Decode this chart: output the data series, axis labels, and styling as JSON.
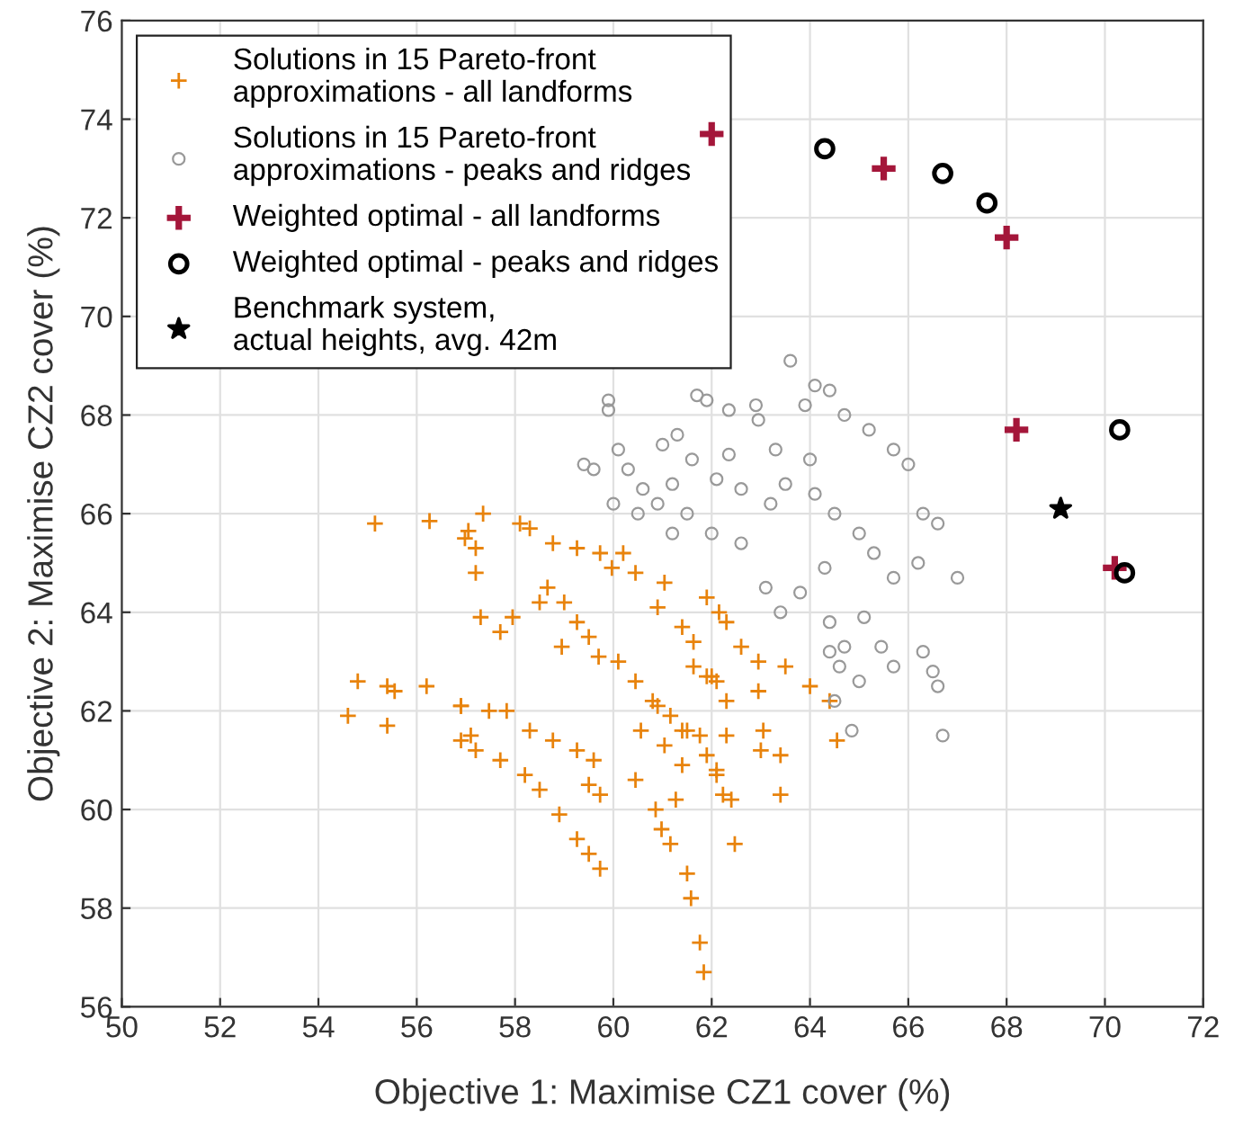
{
  "chart_data": {
    "type": "scatter",
    "xlabel": "Objective 1: Maximise CZ1 cover (%)",
    "ylabel": "Objective 2: Maximise CZ2 cover (%)",
    "xlim": [
      50,
      72
    ],
    "xticks": [
      50,
      52,
      54,
      56,
      58,
      60,
      62,
      64,
      66,
      68,
      70,
      72
    ],
    "ylim": [
      56,
      76
    ],
    "yticks": [
      56,
      58,
      60,
      62,
      64,
      66,
      68,
      70,
      72,
      74,
      76
    ],
    "grid": true,
    "legend": "top left",
    "series": [
      {
        "name": "Solutions in 15 Pareto-front\napproximations - all landforms",
        "color": "#e8830c",
        "marker": "cross",
        "x": [
          54.6,
          54.8,
          55.15,
          55.4,
          55.55,
          56.26,
          56.9,
          57.35,
          57.05,
          57.2,
          58.1,
          58.3,
          58.77,
          59.26,
          59.73,
          60.2,
          59.97,
          60.45,
          61.04,
          61.9,
          62.15,
          62.3,
          62.6,
          62.95,
          63.5,
          64.0,
          64.4,
          64.55,
          58.66,
          59.0,
          59.26,
          59.5,
          59.7,
          60.1,
          60.45,
          60.8,
          61.16,
          61.5,
          61.9,
          62.1,
          62.4,
          62.47,
          57.83,
          58.3,
          58.77,
          59.26,
          59.6,
          56.9,
          57.47,
          56.9,
          57.2,
          57.7,
          58.2,
          58.5,
          58.9,
          59.26,
          59.5,
          59.73,
          59.5,
          59.73,
          60.45,
          60.86,
          60.98,
          61.16,
          61.5,
          61.58,
          61.76,
          61.84,
          60.56,
          61.04,
          61.4,
          61.27,
          62.1,
          62.23,
          63.4,
          63.0,
          62.3,
          61.76,
          60.9,
          61.4,
          61.63,
          62.0,
          57.7,
          57.95,
          57.3,
          58.95,
          58.5,
          57.2,
          56.98,
          60.9,
          61.4,
          62.3,
          61.63,
          61.9,
          62.1,
          62.95,
          63.05,
          63.4,
          55.4,
          56.2,
          57.1
        ],
        "values": [
          61.9,
          62.6,
          65.8,
          62.5,
          62.4,
          65.85,
          62.1,
          66.0,
          65.65,
          65.3,
          65.8,
          65.7,
          65.4,
          65.3,
          65.2,
          65.2,
          64.9,
          64.8,
          64.6,
          64.3,
          64.0,
          63.8,
          63.3,
          63.0,
          62.9,
          62.5,
          62.2,
          61.4,
          64.5,
          64.2,
          63.8,
          63.5,
          63.1,
          63.0,
          62.6,
          62.2,
          61.9,
          61.6,
          61.1,
          60.8,
          60.2,
          59.3,
          62.0,
          61.6,
          61.4,
          61.2,
          61.0,
          62.1,
          62.0,
          61.4,
          61.2,
          61.0,
          60.7,
          60.4,
          59.9,
          59.4,
          59.1,
          58.8,
          60.5,
          60.3,
          60.6,
          60.0,
          59.6,
          59.3,
          58.7,
          58.2,
          57.3,
          56.7,
          61.6,
          61.3,
          60.9,
          60.2,
          60.7,
          60.3,
          60.3,
          61.2,
          61.5,
          61.5,
          64.1,
          63.7,
          63.4,
          62.7,
          63.6,
          63.9,
          63.9,
          63.3,
          64.2,
          64.8,
          65.5,
          62.1,
          61.6,
          62.2,
          62.9,
          62.7,
          62.6,
          62.4,
          61.6,
          61.1,
          61.7,
          62.5,
          61.5
        ]
      },
      {
        "name": "Solutions in 15 Pareto-front\napproximations - peaks and ridges",
        "color": "#999999",
        "marker": "circle",
        "x": [
          63.6,
          64.1,
          64.4,
          61.9,
          62.35,
          62.95,
          63.9,
          64.7,
          65.2,
          65.7,
          66.0,
          61.3,
          61.6,
          62.1,
          62.6,
          63.2,
          63.5,
          64.1,
          64.5,
          65.0,
          65.3,
          65.7,
          66.2,
          66.6,
          66.3,
          67.0,
          61.5,
          62.0,
          62.6,
          63.1,
          63.4,
          63.8,
          64.3,
          64.4,
          64.7,
          65.1,
          65.45,
          65.7,
          66.3,
          66.5,
          66.6,
          64.4,
          64.6,
          65.0,
          64.5,
          64.85,
          66.7,
          61.2,
          63.3,
          64.0,
          62.35,
          59.9,
          59.9,
          60.1,
          60.3,
          60.6,
          60.9,
          61.2,
          59.4,
          59.6,
          60.5,
          60.0,
          62.9,
          61.0,
          61.7
        ],
        "values": [
          69.1,
          68.6,
          68.5,
          68.3,
          68.1,
          67.9,
          68.2,
          68.0,
          67.7,
          67.3,
          67.0,
          67.6,
          67.1,
          66.7,
          66.5,
          66.2,
          66.6,
          66.4,
          66.0,
          65.6,
          65.2,
          64.7,
          65.0,
          65.8,
          66.0,
          64.7,
          66.0,
          65.6,
          65.4,
          64.5,
          64.0,
          64.4,
          64.9,
          63.8,
          63.3,
          63.9,
          63.3,
          62.9,
          63.2,
          62.8,
          62.5,
          63.2,
          62.9,
          62.6,
          62.2,
          61.6,
          61.5,
          66.6,
          67.3,
          67.1,
          67.2,
          68.3,
          68.1,
          67.3,
          66.9,
          66.5,
          66.2,
          65.6,
          67.0,
          66.9,
          66.0,
          66.2,
          68.2,
          67.4,
          68.4
        ]
      },
      {
        "name": "Weighted optimal - all landforms",
        "color": "#a4163a",
        "marker": "cross",
        "x": [
          62.0,
          65.5,
          68.0,
          68.2,
          70.2
        ],
        "values": [
          73.7,
          73.0,
          71.6,
          67.7,
          64.9
        ]
      },
      {
        "name": "Weighted optimal - peaks and ridges",
        "color": "#000000",
        "marker": "circle",
        "x": [
          64.3,
          66.7,
          67.6,
          70.3,
          70.4
        ],
        "values": [
          73.4,
          72.9,
          72.3,
          67.7,
          64.8
        ]
      },
      {
        "name": "Benchmark system,\nactual heights, avg. 42m",
        "color": "#000000",
        "marker": "star",
        "x": [
          69.1
        ],
        "values": [
          66.1
        ]
      }
    ]
  }
}
